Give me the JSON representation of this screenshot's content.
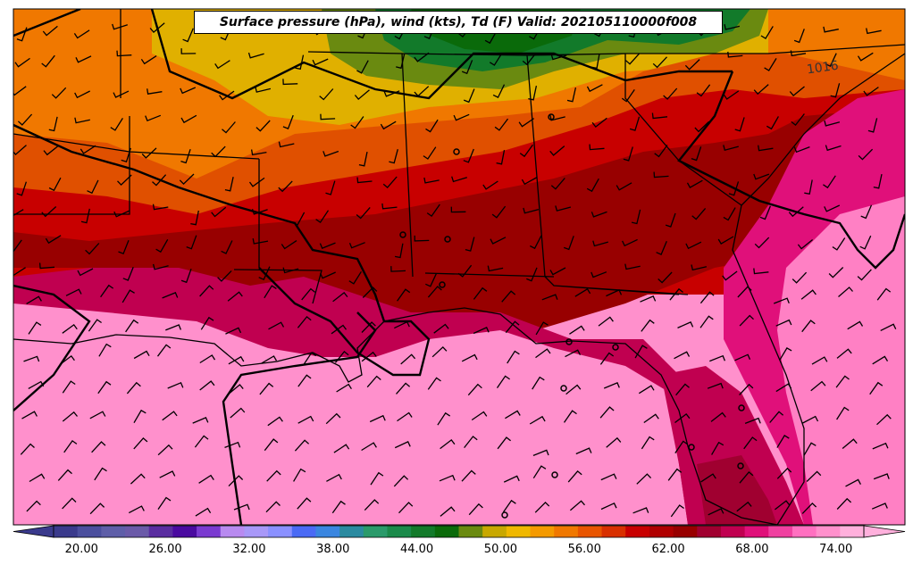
{
  "map": {
    "title": "Surface pressure (hPa), wind (kts), Td (F) Valid: 202105110000f008",
    "contour_label": "1016",
    "station_markers": "circles"
  },
  "colorbar": {
    "ticks": [
      "20.00",
      "26.00",
      "32.00",
      "38.00",
      "44.00",
      "50.00",
      "56.00",
      "62.00",
      "68.00",
      "74.00"
    ],
    "levels_start": 18,
    "levels_end": 76,
    "level_step": 2,
    "colors": [
      "#3a3a8c",
      "#4b4f9e",
      "#5e5ea8",
      "#6a5aa8",
      "#5a2da0",
      "#4a0aa0",
      "#7a3ad0",
      "#b88af0",
      "#a898f8",
      "#8a90ff",
      "#4a6af5",
      "#3a86e0",
      "#2a8aa0",
      "#2a9a6a",
      "#1a8a4a",
      "#127a2a",
      "#0a6a0a",
      "#6a8a10",
      "#c8a800",
      "#f0b800",
      "#f49a00",
      "#f07800",
      "#e85500",
      "#d83000",
      "#c80000",
      "#b00000",
      "#980000",
      "#a00030",
      "#c00050",
      "#e0107a",
      "#f040a0",
      "#ff70c0",
      "#ff90cc",
      "#ffb0dc"
    ]
  }
}
